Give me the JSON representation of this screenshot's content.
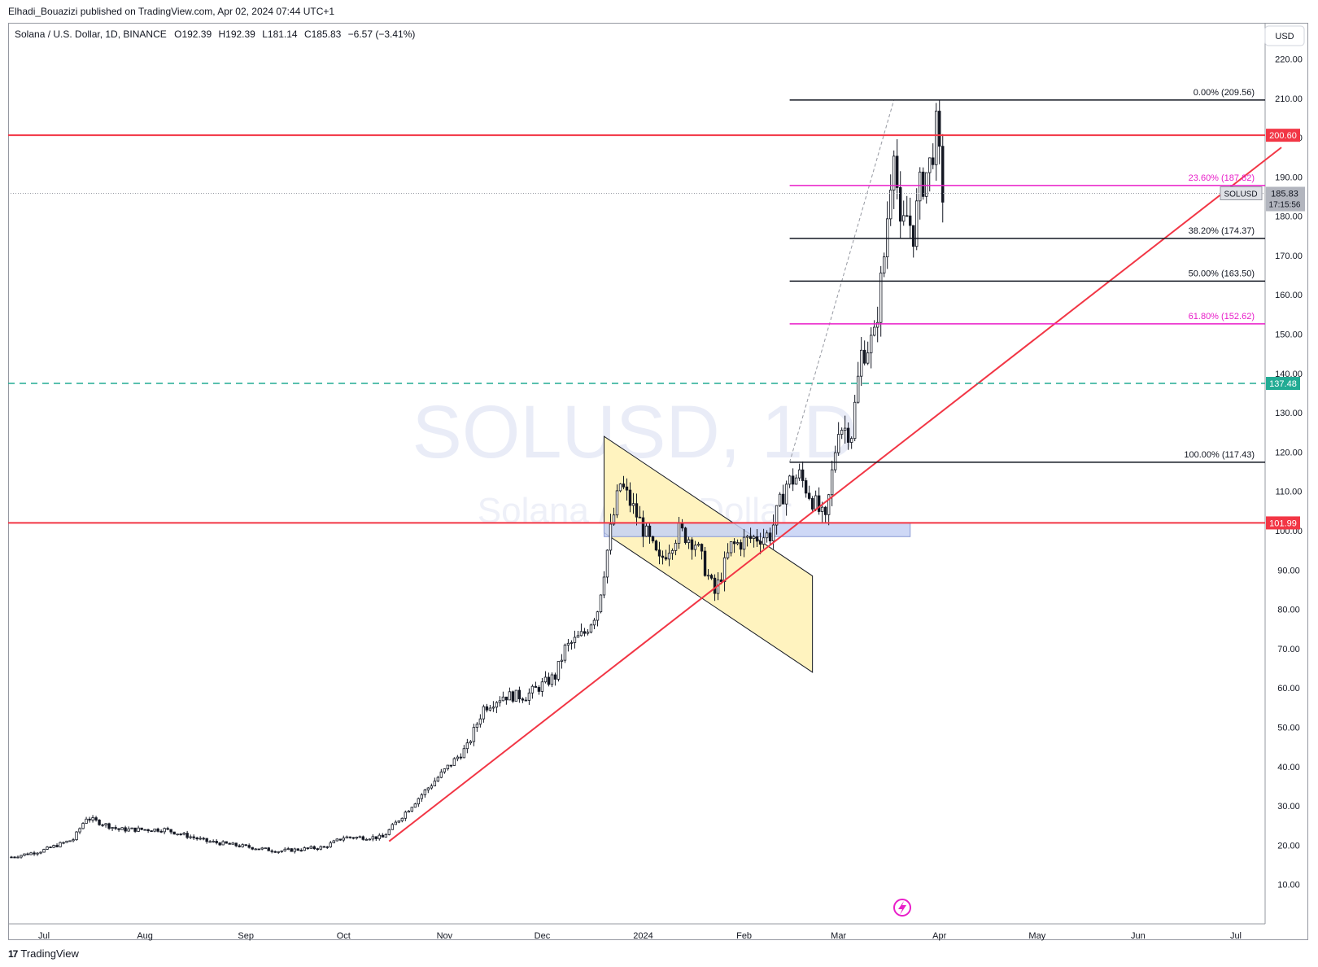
{
  "header": {
    "published": "Elhadi_Bouazizi published on TradingView.com, Apr 02, 2024 07:44 UTC+1"
  },
  "legend": {
    "symbol": "Solana / U.S. Dollar, 1D, BINANCE",
    "o_label": "O",
    "o": "192.39",
    "h_label": "H",
    "h": "192.39",
    "l_label": "L",
    "l": "181.14",
    "c_label": "C",
    "c": "185.83",
    "change": "−6.57 (−3.41%)"
  },
  "watermark": {
    "symbol": "SOLUSD, 1D",
    "name": "Solana / U.S. Dollar"
  },
  "footer": {
    "brand": "TradingView"
  },
  "colors": {
    "candle": "#131722",
    "red_line": "#f23645",
    "fib_black": "#131722",
    "fib_magenta": "#e91ec9",
    "teal_dashed": "#22ab94",
    "channel_fill": "#fff3bf",
    "zone_fill": "#c5d1f5",
    "price_tag": "#b2b5be"
  },
  "chart_data": {
    "type": "candlestick",
    "currency": "USD",
    "y_range": [
      0,
      229
    ],
    "y_ticks": [
      "10.00",
      "20.00",
      "30.00",
      "40.00",
      "50.00",
      "60.00",
      "70.00",
      "80.00",
      "90.00",
      "100.00",
      "110.00",
      "120.00",
      "130.00",
      "140.00",
      "150.00",
      "160.00",
      "170.00",
      "180.00",
      "190.00",
      "200.00",
      "210.00",
      "220.00"
    ],
    "x_ticks": [
      {
        "label": "Jul",
        "date": "2023-07-01"
      },
      {
        "label": "Aug",
        "date": "2023-08-01"
      },
      {
        "label": "Sep",
        "date": "2023-09-01"
      },
      {
        "label": "Oct",
        "date": "2023-10-01"
      },
      {
        "label": "Nov",
        "date": "2023-11-01"
      },
      {
        "label": "Dec",
        "date": "2023-12-01"
      },
      {
        "label": "2024",
        "date": "2024-01-01"
      },
      {
        "label": "Feb",
        "date": "2024-02-01"
      },
      {
        "label": "Mar",
        "date": "2024-03-01"
      },
      {
        "label": "Apr",
        "date": "2024-04-01"
      },
      {
        "label": "May",
        "date": "2024-05-01"
      },
      {
        "label": "Jun",
        "date": "2024-06-01"
      },
      {
        "label": "Jul",
        "date": "2024-07-01"
      }
    ],
    "price_path": [
      {
        "date": "2023-06-21",
        "price": 17.0
      },
      {
        "date": "2023-06-30",
        "price": 18.5
      },
      {
        "date": "2023-07-10",
        "price": 21.5
      },
      {
        "date": "2023-07-14",
        "price": 27.0
      },
      {
        "date": "2023-07-24",
        "price": 24.0
      },
      {
        "date": "2023-08-07",
        "price": 24.0
      },
      {
        "date": "2023-08-20",
        "price": 21.0
      },
      {
        "date": "2023-09-11",
        "price": 18.5
      },
      {
        "date": "2023-09-25",
        "price": 19.5
      },
      {
        "date": "2023-10-01",
        "price": 22.0
      },
      {
        "date": "2023-10-13",
        "price": 22.0
      },
      {
        "date": "2023-10-24",
        "price": 32.0
      },
      {
        "date": "2023-11-01",
        "price": 39.0
      },
      {
        "date": "2023-11-08",
        "price": 45.0
      },
      {
        "date": "2023-11-13",
        "price": 55.0
      },
      {
        "date": "2023-11-19",
        "price": 58.0
      },
      {
        "date": "2023-11-26",
        "price": 58.0
      },
      {
        "date": "2023-12-05",
        "price": 63.0
      },
      {
        "date": "2023-12-08",
        "price": 70.0
      },
      {
        "date": "2023-12-14",
        "price": 74.0
      },
      {
        "date": "2023-12-18",
        "price": 80.0
      },
      {
        "date": "2023-12-22",
        "price": 100.0
      },
      {
        "date": "2023-12-25",
        "price": 112.0
      },
      {
        "date": "2023-12-30",
        "price": 104.0
      },
      {
        "date": "2024-01-06",
        "price": 92.0
      },
      {
        "date": "2024-01-12",
        "price": 100.0
      },
      {
        "date": "2024-01-17",
        "price": 97.0
      },
      {
        "date": "2024-01-23",
        "price": 84.0
      },
      {
        "date": "2024-01-28",
        "price": 96.0
      },
      {
        "date": "2024-02-03",
        "price": 98.0
      },
      {
        "date": "2024-02-09",
        "price": 99.0
      },
      {
        "date": "2024-02-14",
        "price": 112.0
      },
      {
        "date": "2024-02-18",
        "price": 114.0
      },
      {
        "date": "2024-02-26",
        "price": 102.0
      },
      {
        "date": "2024-03-01",
        "price": 127.0
      },
      {
        "date": "2024-03-05",
        "price": 125.0
      },
      {
        "date": "2024-03-08",
        "price": 145.0
      },
      {
        "date": "2024-03-12",
        "price": 149.0
      },
      {
        "date": "2024-03-15",
        "price": 170.0
      },
      {
        "date": "2024-03-18",
        "price": 200.0
      },
      {
        "date": "2024-03-20",
        "price": 175.0
      },
      {
        "date": "2024-03-22",
        "price": 180.0
      },
      {
        "date": "2024-03-24",
        "price": 176.0
      },
      {
        "date": "2024-03-26",
        "price": 187.0
      },
      {
        "date": "2024-03-29",
        "price": 193.0
      },
      {
        "date": "2024-03-31",
        "price": 202.0
      },
      {
        "date": "2024-04-02",
        "price": 185.83
      }
    ],
    "fibonacci": [
      {
        "label": "0.00% (209.56)",
        "price": 209.56,
        "color": "#131722"
      },
      {
        "label": "23.60% (187.82)",
        "price": 187.82,
        "color": "#e91ec9"
      },
      {
        "label": "38.20% (174.37)",
        "price": 174.37,
        "color": "#131722"
      },
      {
        "label": "50.00% (163.50)",
        "price": 163.5,
        "color": "#131722"
      },
      {
        "label": "61.80% (152.62)",
        "price": 152.62,
        "color": "#e91ec9"
      },
      {
        "label": "100.00% (117.43)",
        "price": 117.43,
        "color": "#131722"
      }
    ],
    "fib_start_date": "2024-02-15",
    "horizontal_levels": [
      {
        "label": "200.60",
        "price": 200.6,
        "color": "#f23645",
        "style": "solid"
      },
      {
        "label": "101.99",
        "price": 101.99,
        "color": "#f23645",
        "style": "solid"
      },
      {
        "label": "137.48",
        "price": 137.48,
        "color": "#22ab94",
        "style": "dashed"
      }
    ],
    "trendline": {
      "from": {
        "date": "2023-10-15",
        "price": 21.0
      },
      "to": {
        "date": "2024-07-15",
        "price": 197.5
      }
    },
    "channel": {
      "upper": {
        "from": {
          "date": "2023-12-20",
          "price": 124.0
        },
        "to": {
          "date": "2024-02-22",
          "price": 88.5
        }
      },
      "lower": {
        "from": {
          "date": "2023-12-20",
          "price": 99.5
        },
        "to": {
          "date": "2024-02-22",
          "price": 64.0
        }
      }
    },
    "zone": {
      "from_date": "2023-12-20",
      "to_date": "2024-03-23",
      "top": 101.99,
      "bottom": 98.5
    },
    "last_price": {
      "symbol": "SOLUSD",
      "price": "185.83",
      "countdown": "17:15:56"
    }
  }
}
